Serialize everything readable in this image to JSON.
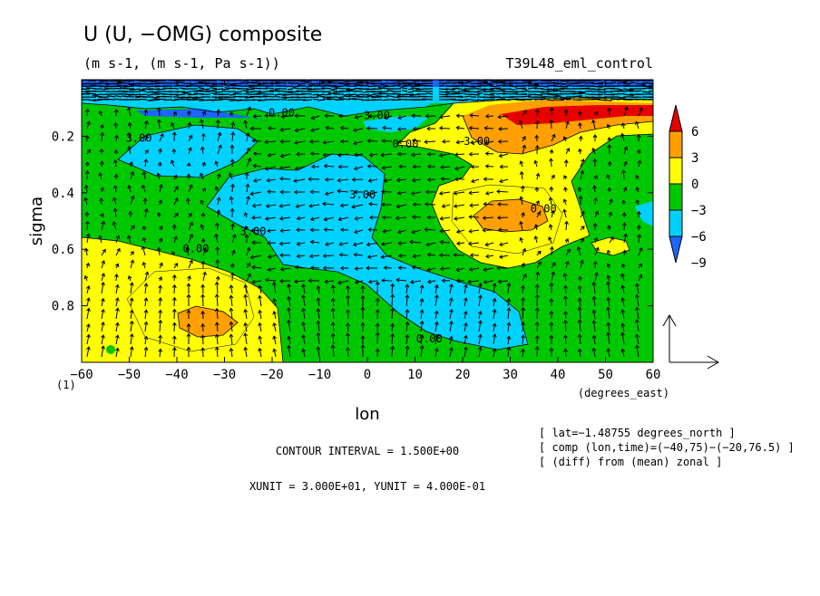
{
  "chart_data": {
    "type": "heatmap",
    "title": "U (U, −OMG) composite",
    "subtitle": "(m s-1, (m s-1, Pa s-1))",
    "experiment": "T39L48_eml_control",
    "xlabel": "lon",
    "x_unit_label": "(degrees_east)",
    "ylabel": "sigma",
    "y_extra_label": "(1)",
    "xlim": [
      -60,
      60
    ],
    "ylim": [
      1.0,
      0.0
    ],
    "x_ticks": [
      -60,
      -50,
      -40,
      -30,
      -20,
      -10,
      0,
      10,
      20,
      30,
      40,
      50,
      60
    ],
    "x_tick_labels": [
      "−60",
      "−50",
      "−40",
      "−30",
      "−20",
      "−10",
      "0",
      "10",
      "20",
      "30",
      "40",
      "50",
      "60"
    ],
    "y_ticks": [
      0.2,
      0.4,
      0.6,
      0.8
    ],
    "y_tick_labels": [
      "0.2",
      "0.4",
      "0.6",
      "0.8"
    ],
    "contour_interval_text": "CONTOUR INTERVAL = 1.500E+00",
    "vector_units_text": "XUNIT = 3.000E+01, YUNIT = 4.000E-01",
    "info_lines": [
      "[ lat=−1.48755 degrees_north ]",
      "[ comp (lon,time)=(−40,75)−(−20,76.5) ]",
      "[ (diff) from (mean) zonal ]"
    ],
    "colorbar": {
      "levels": [
        -9,
        -6,
        -3,
        0,
        3,
        6
      ],
      "level_labels": [
        "−9",
        "−6",
        "−3",
        "0",
        "3",
        "6"
      ],
      "colors": [
        "#1e64ff",
        "#00d2ff",
        "#00c800",
        "#ffff00",
        "#ffa000",
        "#e60000"
      ]
    },
    "contour_labels": [
      {
        "text": "3.00",
        "lon": -48,
        "sigma": 0.22
      },
      {
        "text": "0.00",
        "lon": -18,
        "sigma": 0.13
      },
      {
        "text": "3.00",
        "lon": 2,
        "sigma": 0.14
      },
      {
        "text": "0.00",
        "lon": 8,
        "sigma": 0.24
      },
      {
        "text": "3.00",
        "lon": 23,
        "sigma": 0.23
      },
      {
        "text": "3.00",
        "lon": -1,
        "sigma": 0.42
      },
      {
        "text": "0.00",
        "lon": 37,
        "sigma": 0.47
      },
      {
        "text": "3.00",
        "lon": -24,
        "sigma": 0.55
      },
      {
        "text": "0.00",
        "lon": -36,
        "sigma": 0.61
      },
      {
        "text": "0.00",
        "lon": 13,
        "sigma": 0.93
      }
    ],
    "grid": false
  }
}
